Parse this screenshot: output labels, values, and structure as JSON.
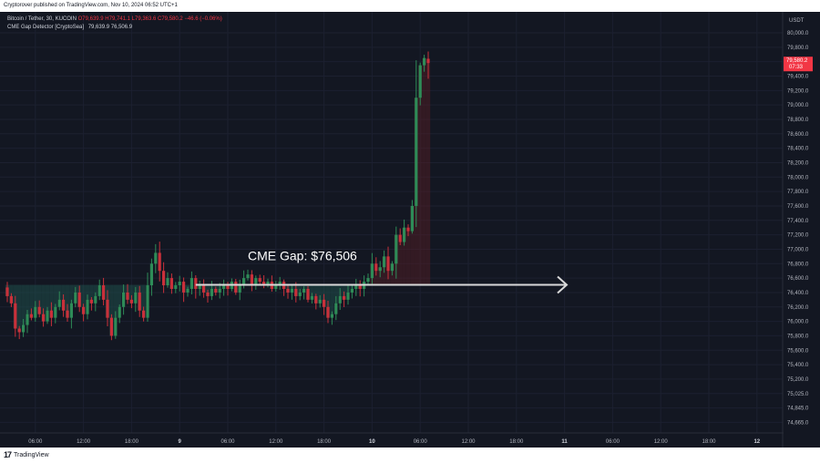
{
  "header": {
    "published": "Cryptorover published on TradingView.com, Nov 10, 2024 06:52 UTC+1"
  },
  "legend": {
    "symbol": "Bitcoin / Tether, 30, KUCOIN",
    "ohlc": "O79,639.9 H79,741.1 L79,363.6 C79,580.2 −46.6 (−0.06%)",
    "indicator": "CME Gap Detector [CryptoSea]",
    "indicator_values": "79,639.9  76,506.9"
  },
  "price_axis": {
    "currency": "USDT",
    "current_price": "79,580.2",
    "countdown": "07:33"
  },
  "footer": {
    "brand": "TradingView"
  },
  "colors": {
    "up": "#26a69a",
    "down": "#ef5350",
    "up_bar": "#2e8b57",
    "down_bar": "#c9303a",
    "background": "#131722",
    "arrow": "#d9d9d9"
  },
  "chart_data": {
    "type": "candlestick",
    "annotation": {
      "text": "CME Gap: $76,506",
      "price": 76506
    },
    "y_ticks": [
      80000,
      79800,
      79600,
      79400,
      79200,
      79000,
      78800,
      78600,
      78400,
      78200,
      78000,
      77800,
      77600,
      77400,
      77200,
      77000,
      76800,
      76600,
      76400,
      76200,
      76000,
      75800,
      75600,
      75400,
      75200,
      75025,
      74845,
      74665
    ],
    "y_tick_labels": [
      "80,000.0",
      "79,800.0",
      "79,600.0",
      "79,400.0",
      "79,200.0",
      "79,000.0",
      "78,800.0",
      "78,600.0",
      "78,400.0",
      "78,200.0",
      "78,000.0",
      "77,800.0",
      "77,600.0",
      "77,400.0",
      "77,200.0",
      "77,000.0",
      "76,800.0",
      "76,600.0",
      "76,400.0",
      "76,200.0",
      "76,000.0",
      "75,800.0",
      "75,600.0",
      "75,400.0",
      "75,200.0",
      "75,025.0",
      "74,845.0",
      "74,665.0"
    ],
    "x_ticks": [
      {
        "label": "06:00",
        "bar": 7,
        "day": false
      },
      {
        "label": "12:00",
        "bar": 19,
        "day": false
      },
      {
        "label": "18:00",
        "bar": 31,
        "day": false
      },
      {
        "label": "9",
        "bar": 43,
        "day": true
      },
      {
        "label": "06:00",
        "bar": 55,
        "day": false
      },
      {
        "label": "12:00",
        "bar": 67,
        "day": false
      },
      {
        "label": "18:00",
        "bar": 79,
        "day": false
      },
      {
        "label": "10",
        "bar": 91,
        "day": true
      },
      {
        "label": "06:00",
        "bar": 103,
        "day": false
      },
      {
        "label": "12:00",
        "bar": 115,
        "day": false
      },
      {
        "label": "18:00",
        "bar": 127,
        "day": false
      },
      {
        "label": "11",
        "bar": 139,
        "day": true
      },
      {
        "label": "06:00",
        "bar": 151,
        "day": false
      },
      {
        "label": "12:00",
        "bar": 163,
        "day": false
      },
      {
        "label": "18:00",
        "bar": 175,
        "day": false
      },
      {
        "label": "12",
        "bar": 187,
        "day": true
      }
    ],
    "closes": [
      76350,
      76250,
      75900,
      75850,
      75950,
      76100,
      76050,
      76200,
      76100,
      76000,
      76150,
      76050,
      76200,
      76300,
      76150,
      76050,
      76250,
      76400,
      76200,
      76100,
      76300,
      76250,
      76350,
      76500,
      76300,
      76050,
      75800,
      76050,
      76200,
      76400,
      76300,
      76250,
      76400,
      76150,
      76050,
      76500,
      76800,
      76950,
      76700,
      76500,
      76600,
      76450,
      76500,
      76550,
      76400,
      76450,
      76600,
      76450,
      76500,
      76400,
      76350,
      76450,
      76400,
      76450,
      76500,
      76450,
      76550,
      76400,
      76500,
      76600,
      76650,
      76500,
      76600,
      76550,
      76500,
      76550,
      76450,
      76500,
      76550,
      76450,
      76400,
      76450,
      76350,
      76400,
      76450,
      76300,
      76350,
      76250,
      76300,
      76200,
      76050,
      76100,
      76250,
      76350,
      76300,
      76400,
      76450,
      76500,
      76450,
      76550,
      76600,
      76800,
      76700,
      76750,
      76900,
      76700,
      76800,
      77200,
      77100,
      77300,
      77250,
      77600,
      79100,
      79550,
      79650,
      79580
    ],
    "last_candle": {
      "open": 79639.9,
      "high": 79741.1,
      "low": 79363.6,
      "close": 79580.2
    }
  }
}
